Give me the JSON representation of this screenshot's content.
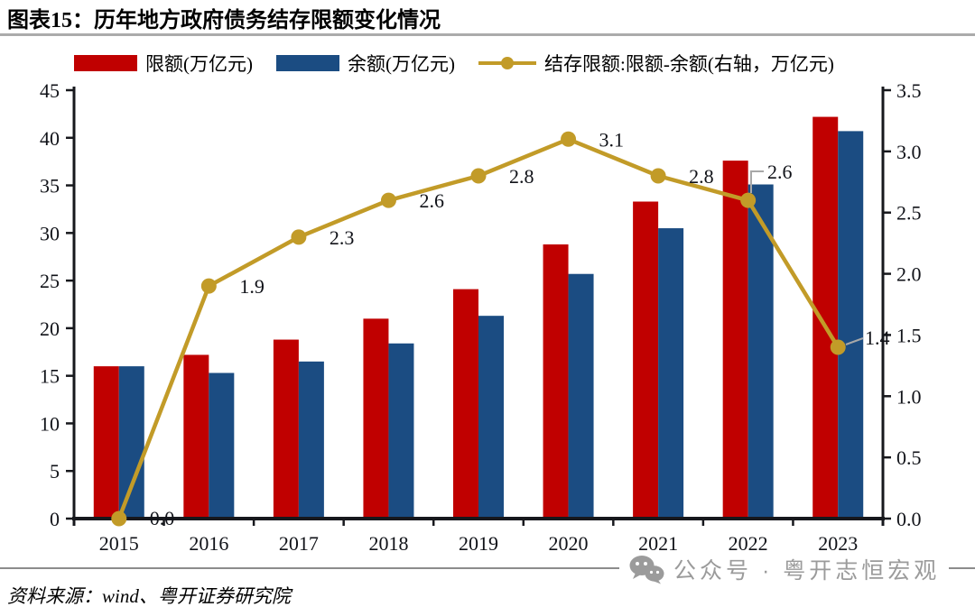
{
  "header": {
    "title": "图表15：历年地方政府债务结存限额变化情况"
  },
  "legend": [
    {
      "label": "限额(万亿元)",
      "type": "bar",
      "color": "#C00000"
    },
    {
      "label": "余额(万亿元)",
      "type": "bar",
      "color": "#1B4C82"
    },
    {
      "label": "结存限额:限额-余额(右轴，万亿元)",
      "type": "line",
      "color": "#C29B28"
    }
  ],
  "chart_data": {
    "type": "bar+line combo",
    "categories": [
      "2015",
      "2016",
      "2017",
      "2018",
      "2019",
      "2020",
      "2021",
      "2022",
      "2023"
    ],
    "series": [
      {
        "name": "限额(万亿元)",
        "type": "bar",
        "axis": "left",
        "color": "#C00000",
        "values": [
          16.0,
          17.2,
          18.8,
          21.0,
          24.1,
          28.8,
          33.3,
          37.6,
          42.2
        ]
      },
      {
        "name": "余额(万亿元)",
        "type": "bar",
        "axis": "left",
        "color": "#1B4C82",
        "values": [
          16.0,
          15.3,
          16.5,
          18.4,
          21.3,
          25.7,
          30.5,
          35.1,
          40.7
        ]
      },
      {
        "name": "结存限额:限额-余额(右轴，万亿元)",
        "type": "line",
        "axis": "right",
        "color": "#C29B28",
        "values": [
          0.0,
          1.9,
          2.3,
          2.6,
          2.8,
          3.1,
          2.8,
          2.6,
          1.4
        ],
        "point_labels": [
          "0.0",
          "1.9",
          "2.3",
          "2.6",
          "2.8",
          "3.1",
          "2.8",
          "2.6",
          "1.4"
        ]
      }
    ],
    "left_axis": {
      "min": 0,
      "max": 45,
      "step": 5,
      "ticks": [
        "0",
        "5",
        "10",
        "15",
        "20",
        "25",
        "30",
        "35",
        "40",
        "45"
      ]
    },
    "right_axis": {
      "min": 0,
      "max": 3.5,
      "step": 0.5,
      "ticks": [
        "0.0",
        "0.5",
        "1.0",
        "1.5",
        "2.0",
        "2.5",
        "3.0",
        "3.5"
      ]
    },
    "grid": false,
    "legend_position": "top",
    "title": "历年地方政府债务结存限额变化情况"
  },
  "footer": {
    "source": "资料来源：wind、粤开证券研究院",
    "watermark": "公众号 · 粤开志恒宏观"
  },
  "colors": {
    "bar_limit": "#C00000",
    "bar_balance": "#1B4C82",
    "line_reserve": "#C29B28",
    "axis": "#17181d",
    "leader_line": "#a8a8a8",
    "watermark_gray": "#9b9b9b"
  }
}
